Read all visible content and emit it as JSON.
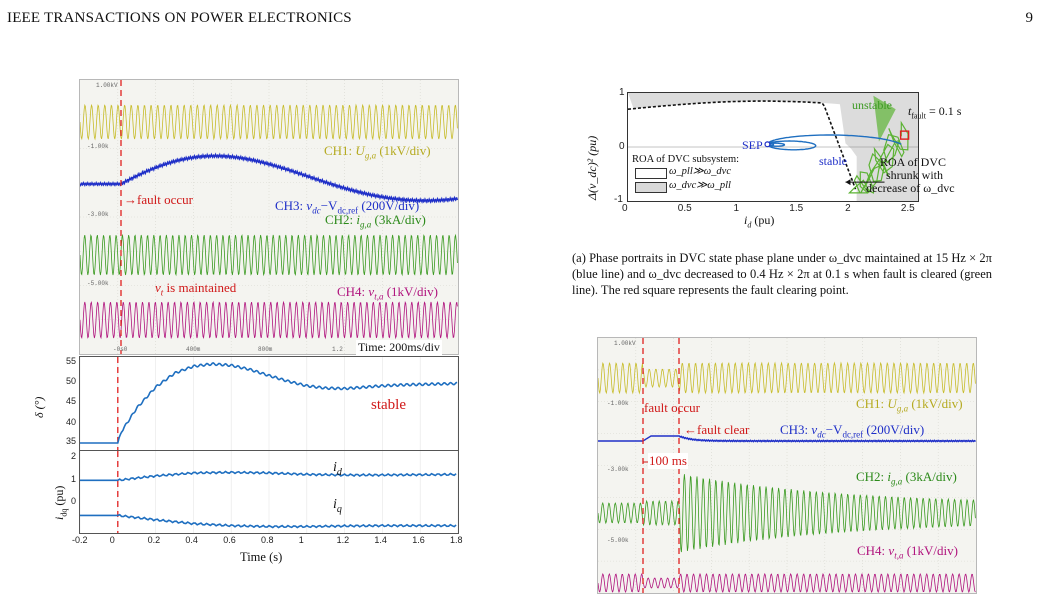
{
  "header": {
    "journal": "IEEE TRANSACTIONS ON POWER ELECTRONICS",
    "page": "9"
  },
  "left_figure": {
    "scope": {
      "ch1": "CH1: U_{g,a} (1kV/div)",
      "ch1_main": "CH1: ",
      "ch1_sym": "U",
      "ch1_sub": "g,a",
      "ch1_unit": " (1kV/div)",
      "ch3_main": "CH3: ",
      "ch3_sym": "v",
      "ch3_sub": "dc",
      "ch3_minus": "−V",
      "ch3_sub2": "dc,ref",
      "ch3_unit": " (200V/div)",
      "ch2_main": "CH2: ",
      "ch2_sym": "i",
      "ch2_sub": "g,a",
      "ch2_unit": " (3kA/div)",
      "ch4_main": "CH4: ",
      "ch4_sym": "v",
      "ch4_sub": "t,a",
      "ch4_unit": " (1kV/div)",
      "fault_occur": "fault occur",
      "vt_sym": "v",
      "vt_sub": "t",
      "vt_text": " is maintained",
      "time_div": "Time: 200ms/div",
      "grid_top": "1.00kV",
      "grid_m1": "-1.00k",
      "grid_m3": "-3.00k",
      "grid_m5": "-5.00k",
      "t_labels": [
        "-0s0",
        "400m",
        "800m",
        "1.2"
      ]
    },
    "delta_plot": {
      "ylabel": "δ (°)",
      "yticks": [
        "55",
        "50",
        "45",
        "40",
        "35"
      ],
      "annotation": "stable"
    },
    "idq_plot": {
      "ylabel_sym": "i",
      "ylabel_sub": "dq",
      "ylabel_unit": " (pu)",
      "yticks": [
        "2",
        "1",
        "0"
      ],
      "id_label": "d",
      "iq_label": "q",
      "xticks": [
        "-0.2",
        "0",
        "0.2",
        "0.4",
        "0.6",
        "0.8",
        "1",
        "1.2",
        "1.4",
        "1.6",
        "1.8"
      ],
      "xlabel": "Time (s)"
    }
  },
  "chart_data": [
    {
      "type": "line",
      "ylabel": "δ (°)",
      "xlabel": "Time (s)",
      "xlim": [
        -0.2,
        1.8
      ],
      "ylim": [
        35,
        55
      ],
      "series": [
        {
          "x": [
            -0.2,
            0,
            0.02,
            0.1,
            0.2,
            0.3,
            0.4,
            0.5,
            0.6,
            0.7,
            0.8,
            0.9,
            1.0,
            1.1,
            1.2,
            1.3,
            1.4,
            1.5,
            1.6,
            1.7,
            1.8
          ],
          "y": [
            36.5,
            36.5,
            39,
            44,
            48.5,
            51.5,
            53,
            53.5,
            53.2,
            52.3,
            51,
            49.8,
            48.8,
            48.3,
            48.2,
            48.5,
            48.8,
            49,
            49.1,
            49.2,
            49.3
          ]
        }
      ]
    },
    {
      "type": "line",
      "ylabel": "i_dq (pu)",
      "xlabel": "Time (s)",
      "xlim": [
        -0.2,
        1.8
      ],
      "ylim": [
        -0.6,
        2.2
      ],
      "series": [
        {
          "name": "i_d",
          "x": [
            -0.2,
            0,
            0.2,
            0.4,
            0.6,
            0.8,
            1.0,
            1.2,
            1.4,
            1.6,
            1.8
          ],
          "y": [
            1.2,
            1.2,
            1.35,
            1.45,
            1.47,
            1.45,
            1.4,
            1.38,
            1.38,
            1.39,
            1.4
          ]
        },
        {
          "name": "i_q",
          "x": [
            -0.2,
            0,
            0.2,
            0.4,
            0.6,
            0.8,
            1.0,
            1.2,
            1.4,
            1.6,
            1.8
          ],
          "y": [
            0.0,
            0.0,
            -0.15,
            -0.28,
            -0.35,
            -0.38,
            -0.38,
            -0.36,
            -0.35,
            -0.35,
            -0.35
          ]
        }
      ]
    },
    {
      "type": "line",
      "xlabel": "i_d (pu)",
      "ylabel": "Δ(v_dc)^2 (pu)",
      "xlim": [
        0,
        2.6
      ],
      "ylim": [
        -1,
        1
      ],
      "series": [
        {
          "x": [
            1.25,
            1.6,
            2.0,
            2.25,
            2.4,
            2.5
          ],
          "y": [
            0.05,
            0.12,
            0.18,
            0.2,
            0.2,
            0.2
          ]
        }
      ]
    }
  ],
  "phase_plot": {
    "ylabel": "Δ(v_dc)² (pu)",
    "xlabel_sym": "i",
    "xlabel_sub": "d",
    "xlabel_unit": " (pu)",
    "yticks": [
      "1",
      "0",
      "-1"
    ],
    "xticks": [
      "0",
      "0.5",
      "1",
      "1.5",
      "2",
      "2.5"
    ],
    "unstable": "unstable",
    "stable": "stable",
    "sep": "SEP",
    "tfault": "= 0.1 s",
    "tfault_sym": "t",
    "tfault_sub": "fault",
    "roa_title": "ROA of DVC subsystem:",
    "roa_white": "ω_pll≫ω_dvc",
    "roa_grey": "ω_dvc≫ω_pll",
    "roa_dvc_line1": "ROA of DVC",
    "roa_dvc_line2": "shrunk with",
    "roa_dvc_line3": "decrease of ω_dvc"
  },
  "caption": "(a) Phase portraits in DVC state phase plane under ω_dvc maintained at 15 Hz × 2π (blue line) and ω_dvc decreased to 0.4 Hz × 2π at 0.1 s when fault is cleared (green line). The red square represents the fault clearing point.",
  "right_scope": {
    "ch1_main": "CH1: ",
    "ch1_sym": "U",
    "ch1_sub": "g,a",
    "ch1_unit": " (1kV/div)",
    "ch3_main": "CH3: ",
    "ch3_sym": "v",
    "ch3_sub": "dc",
    "ch3_minus": "−V",
    "ch3_sub2": "dc,ref",
    "ch3_unit": " (200V/div)",
    "ch2_main": "CH2: ",
    "ch2_sym": "i",
    "ch2_sub": "g,a",
    "ch2_unit": " (3kA/div)",
    "ch4_main": "CH4: ",
    "ch4_sym": "v",
    "ch4_sub": "t,a",
    "ch4_unit": " (1kV/div)",
    "fault_occur": "fault occur",
    "fault_clear": "fault clear",
    "duration": "100 ms",
    "grid_top": "1.00kV",
    "grid_m1": "-1.00k",
    "grid_m3": "-3.00k",
    "grid_m5": "-5.00k"
  }
}
